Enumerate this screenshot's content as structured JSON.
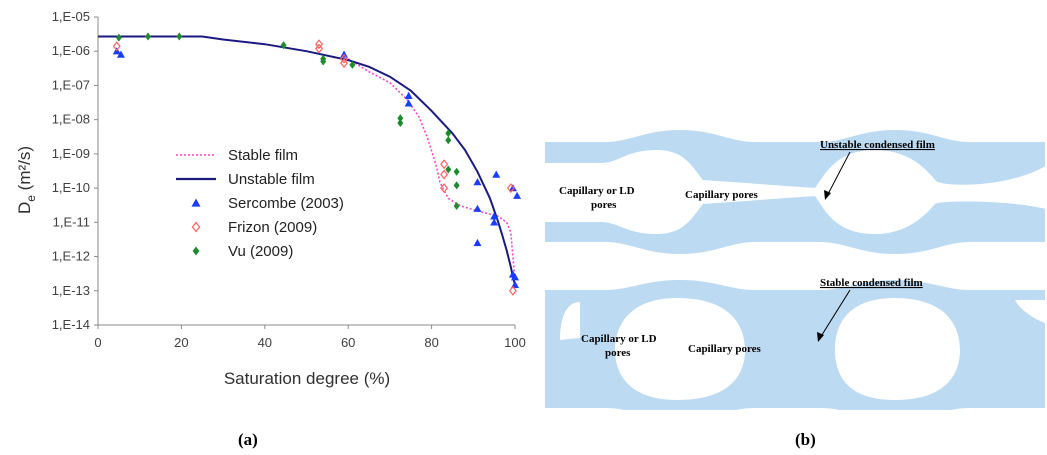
{
  "chart_data": {
    "type": "scatter",
    "xlabel": "Saturation degree (%)",
    "ylabel": "De (m²/s)",
    "xlim": [
      0,
      100
    ],
    "ylim_log10": [
      -14,
      -5
    ],
    "xticks": [
      0,
      20,
      40,
      60,
      80,
      100
    ],
    "yticks": [
      "1,E-14",
      "1,E-13",
      "1,E-12",
      "1,E-11",
      "1,E-10",
      "1,E-09",
      "1,E-08",
      "1,E-07",
      "1,E-06",
      "1,E-05"
    ],
    "grid": false,
    "legend_position": "center",
    "series": [
      {
        "name": "Stable film",
        "kind": "line",
        "style": "dotted",
        "color": "#ff44cc",
        "points": [
          [
            60,
            6e-07
          ],
          [
            65,
            2.5e-07
          ],
          [
            70,
            1.2e-07
          ],
          [
            74,
            4e-08
          ],
          [
            77,
            1.2e-08
          ],
          [
            79,
            3e-09
          ],
          [
            81,
            5e-10
          ],
          [
            82,
            1.5e-10
          ],
          [
            84,
            5e-11
          ],
          [
            87,
            3e-11
          ],
          [
            92,
            2e-11
          ],
          [
            96,
            1.5e-11
          ],
          [
            98,
            1e-11
          ],
          [
            99,
            5e-12
          ],
          [
            99.5,
            1e-12
          ],
          [
            100,
            2e-13
          ]
        ]
      },
      {
        "name": "Unstable film",
        "kind": "line",
        "style": "solid",
        "color": "#1a1a80",
        "points": [
          [
            0,
            2.7e-06
          ],
          [
            25,
            2.7e-06
          ],
          [
            30,
            2.2e-06
          ],
          [
            40,
            1.6e-06
          ],
          [
            50,
            1e-06
          ],
          [
            60,
            5.5e-07
          ],
          [
            65,
            3.5e-07
          ],
          [
            70,
            1.8e-07
          ],
          [
            75,
            7e-08
          ],
          [
            80,
            1.8e-08
          ],
          [
            85,
            4e-09
          ],
          [
            88,
            1.3e-09
          ],
          [
            91,
            3e-10
          ],
          [
            94,
            5e-11
          ],
          [
            96,
            1e-11
          ],
          [
            97,
            4e-12
          ],
          [
            98,
            1.5e-12
          ],
          [
            99,
            5e-13
          ],
          [
            99.5,
            2.5e-13
          ],
          [
            100,
            1.5e-13
          ]
        ]
      },
      {
        "name": "Sercombe (2003)",
        "kind": "scatter",
        "marker": "triangle",
        "color": "#1a3cff",
        "points": [
          [
            4.5,
            1e-06
          ],
          [
            5.5,
            8e-07
          ],
          [
            59,
            8e-07
          ],
          [
            74.5,
            5e-08
          ],
          [
            74.5,
            3e-08
          ],
          [
            91,
            1.5e-10
          ],
          [
            91,
            2.5e-11
          ],
          [
            91,
            2.5e-12
          ],
          [
            95,
            1.5e-11
          ],
          [
            95,
            1e-11
          ],
          [
            95.5,
            2.5e-10
          ],
          [
            99.5,
            1e-10
          ],
          [
            99.5,
            3e-13
          ],
          [
            100,
            2.5e-13
          ],
          [
            100,
            1.5e-13
          ],
          [
            100.5,
            6e-11
          ]
        ]
      },
      {
        "name": "Frizon (2009)",
        "kind": "scatter",
        "marker": "open-diamond",
        "color": "#ff6060",
        "points": [
          [
            4.5,
            1.4e-06
          ],
          [
            53,
            1.6e-06
          ],
          [
            53,
            1.2e-06
          ],
          [
            59,
            6e-07
          ],
          [
            59,
            4.5e-07
          ],
          [
            83,
            5e-10
          ],
          [
            83,
            2.5e-10
          ],
          [
            83,
            1e-10
          ],
          [
            99,
            1e-10
          ],
          [
            99.5,
            1e-13
          ]
        ]
      },
      {
        "name": "Vu (2009)",
        "kind": "scatter",
        "marker": "diamond",
        "color": "#1f8a2e",
        "points": [
          [
            5,
            2.5e-06
          ],
          [
            12,
            2.7e-06
          ],
          [
            19.5,
            2.7e-06
          ],
          [
            44.5,
            1.5e-06
          ],
          [
            54,
            6e-07
          ],
          [
            54,
            5e-07
          ],
          [
            61,
            4e-07
          ],
          [
            72.5,
            1.1e-08
          ],
          [
            72.5,
            8e-09
          ],
          [
            84,
            4e-09
          ],
          [
            84,
            2.5e-09
          ],
          [
            84,
            3.5e-10
          ],
          [
            86,
            3e-10
          ],
          [
            86,
            1.2e-10
          ],
          [
            86,
            3e-11
          ]
        ]
      }
    ]
  },
  "diagram": {
    "top_caption": "Unstable condensed film",
    "bottom_caption": "Stable condensed film",
    "top_left_label_1": "Capillary or LD",
    "top_left_label_2": "pores",
    "top_mid_label": "Capillary pores",
    "bottom_left_label_1": "Capillary or LD",
    "bottom_left_label_2": "pores",
    "bottom_mid_label": "Capillary pores",
    "fill_color": "#bcdaf2"
  },
  "labels": {
    "panel_a": "(a)",
    "panel_b": "(b)"
  }
}
